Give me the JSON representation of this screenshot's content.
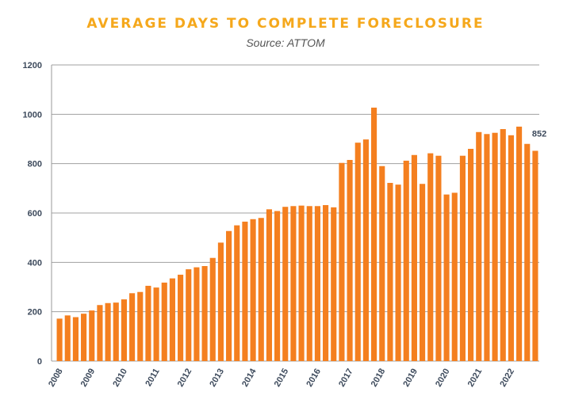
{
  "chart_data": {
    "type": "bar",
    "title": "AVERAGE DAYS TO COMPLETE FORECLOSURE",
    "subtitle": "Source: ATTOM",
    "xlabel": "",
    "ylabel": "",
    "ylim": [
      0,
      1200
    ],
    "yticks": [
      0,
      200,
      400,
      600,
      800,
      1000,
      1200
    ],
    "grid": true,
    "bar_color": "#F47F1F",
    "year_labels": [
      "2008",
      "2009",
      "2010",
      "2011",
      "2012",
      "2013",
      "2014",
      "2015",
      "2016",
      "2017",
      "2018",
      "2019",
      "2020",
      "2021",
      "2022"
    ],
    "values": [
      172,
      185,
      178,
      192,
      205,
      227,
      235,
      237,
      250,
      275,
      280,
      305,
      298,
      318,
      335,
      350,
      372,
      380,
      385,
      418,
      480,
      527,
      550,
      565,
      575,
      580,
      615,
      608,
      625,
      628,
      630,
      628,
      628,
      632,
      623,
      803,
      815,
      885,
      898,
      1027,
      790,
      722,
      715,
      812,
      835,
      718,
      842,
      832,
      675,
      682,
      832,
      860,
      928,
      920,
      925,
      940,
      915,
      950,
      880,
      852
    ],
    "data_labels": [
      {
        "index": 59,
        "text": "852"
      }
    ]
  }
}
